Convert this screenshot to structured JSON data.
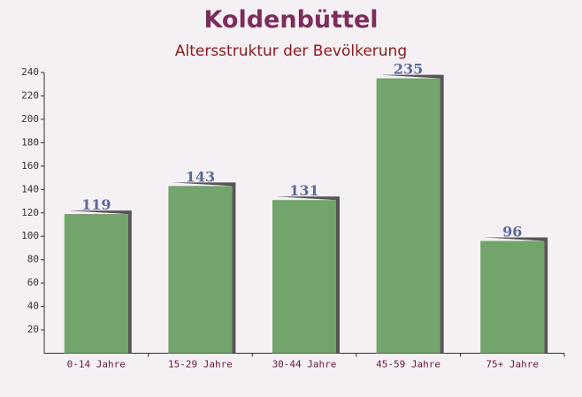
{
  "chart_data": {
    "type": "bar",
    "title": "Koldenbüttel",
    "subtitle": "Altersstruktur der Bevölkerung",
    "categories": [
      "0-14 Jahre",
      "15-29 Jahre",
      "30-44 Jahre",
      "45-59 Jahre",
      "75+ Jahre"
    ],
    "values": [
      119,
      143,
      131,
      235,
      96
    ],
    "color": "#6a9f63",
    "ylim": [
      0,
      240
    ],
    "yticks": [
      20,
      40,
      60,
      80,
      100,
      120,
      140,
      160,
      180,
      200,
      220,
      240
    ]
  }
}
